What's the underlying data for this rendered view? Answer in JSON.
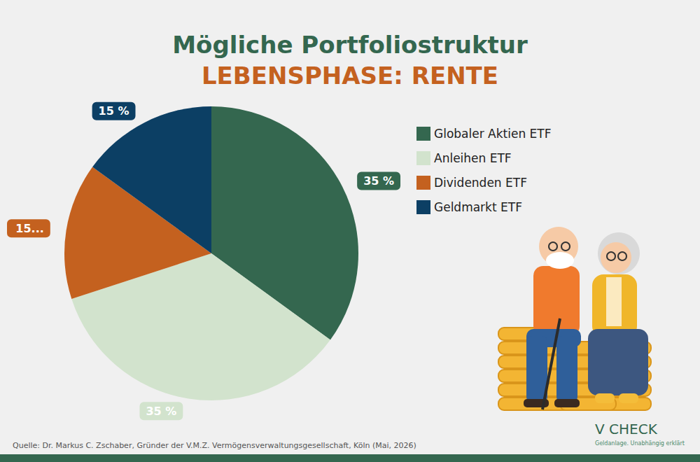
{
  "chart_data": {
    "type": "pie",
    "title": "Mögliche Portfoliostruktur",
    "subtitle": "LEBENSPHASE: RENTE",
    "categories": [
      "Globaler Aktien ETF",
      "Anleihen ETF",
      "Dividenden ETF",
      "Geldmarkt ETF"
    ],
    "values": [
      35,
      35,
      15,
      15
    ],
    "value_labels": [
      "35 %",
      "35 %",
      "15 %",
      "15 %"
    ],
    "colors": [
      "#34674f",
      "#d2e3cd",
      "#c4611f",
      "#0c3f64"
    ],
    "data_labels": true,
    "legend": "right",
    "source": "Quelle: Dr. Markus C. Zschaber, Gründer der V.M.Z. Vermögensverwaltungsgesellschaft, Köln (Mai, 2026)"
  },
  "logo": {
    "text": "V CHECK",
    "tagline": "Geldanlage. Unabhängig erklärt"
  }
}
